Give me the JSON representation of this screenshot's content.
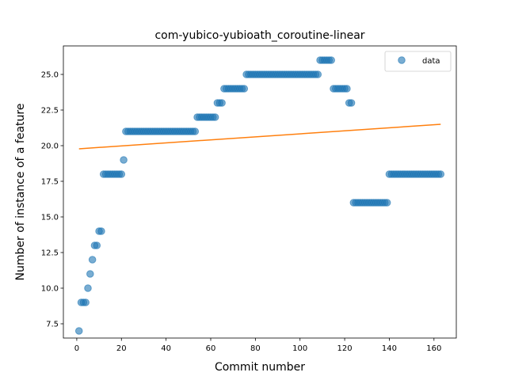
{
  "chart_data": {
    "type": "scatter",
    "title": "com-yubico-yubioath_coroutine-linear",
    "xlabel": "Commit number",
    "ylabel": "Number of instance of a feature",
    "xlim": [
      -6,
      170
    ],
    "ylim": [
      6.5,
      27.0
    ],
    "xticks": [
      0,
      20,
      40,
      60,
      80,
      100,
      120,
      140,
      160
    ],
    "yticks": [
      7.5,
      10.0,
      12.5,
      15.0,
      17.5,
      20.0,
      22.5,
      25.0
    ],
    "xtick_labels": [
      "0",
      "20",
      "40",
      "60",
      "80",
      "100",
      "120",
      "140",
      "160"
    ],
    "ytick_labels": [
      "7.5",
      "10.0",
      "12.5",
      "15.0",
      "17.5",
      "20.0",
      "22.5",
      "25.0"
    ],
    "grid": false,
    "legend": {
      "position": "top-right",
      "entries": [
        "data"
      ]
    },
    "series": [
      {
        "name": "data",
        "kind": "scatter",
        "color": "#1f77b4",
        "x": [
          1,
          2,
          3,
          4,
          5,
          6,
          7,
          8,
          9,
          10,
          11,
          12,
          13,
          14,
          15,
          16,
          17,
          18,
          19,
          20,
          21,
          22,
          23,
          24,
          25,
          26,
          27,
          28,
          29,
          30,
          31,
          32,
          33,
          34,
          35,
          36,
          37,
          38,
          39,
          40,
          41,
          42,
          43,
          44,
          45,
          46,
          47,
          48,
          49,
          50,
          51,
          52,
          53,
          54,
          55,
          56,
          57,
          58,
          59,
          60,
          61,
          62,
          63,
          64,
          65,
          66,
          67,
          68,
          69,
          70,
          71,
          72,
          73,
          74,
          75,
          76,
          77,
          78,
          79,
          80,
          81,
          82,
          83,
          84,
          85,
          86,
          87,
          88,
          89,
          90,
          91,
          92,
          93,
          94,
          95,
          96,
          97,
          98,
          99,
          100,
          101,
          102,
          103,
          104,
          105,
          106,
          107,
          108,
          109,
          110,
          111,
          112,
          113,
          114,
          115,
          116,
          117,
          118,
          119,
          120,
          121,
          122,
          123,
          124,
          125,
          126,
          127,
          128,
          129,
          130,
          131,
          132,
          133,
          134,
          135,
          136,
          137,
          138,
          139,
          140,
          141,
          142,
          143,
          144,
          145,
          146,
          147,
          148,
          149,
          150,
          151,
          152,
          153,
          154,
          155,
          156,
          157,
          158,
          159,
          160,
          161,
          162,
          163
        ],
        "y": [
          7,
          9,
          9,
          9,
          10,
          11,
          12,
          13,
          13,
          14,
          14,
          18,
          18,
          18,
          18,
          18,
          18,
          18,
          18,
          18,
          19,
          21,
          21,
          21,
          21,
          21,
          21,
          21,
          21,
          21,
          21,
          21,
          21,
          21,
          21,
          21,
          21,
          21,
          21,
          21,
          21,
          21,
          21,
          21,
          21,
          21,
          21,
          21,
          21,
          21,
          21,
          21,
          21,
          22,
          22,
          22,
          22,
          22,
          22,
          22,
          22,
          22,
          23,
          23,
          23,
          24,
          24,
          24,
          24,
          24,
          24,
          24,
          24,
          24,
          24,
          25,
          25,
          25,
          25,
          25,
          25,
          25,
          25,
          25,
          25,
          25,
          25,
          25,
          25,
          25,
          25,
          25,
          25,
          25,
          25,
          25,
          25,
          25,
          25,
          25,
          25,
          25,
          25,
          25,
          25,
          25,
          25,
          25,
          26,
          26,
          26,
          26,
          26,
          26,
          24,
          24,
          24,
          24,
          24,
          24,
          24,
          23,
          23,
          16,
          16,
          16,
          16,
          16,
          16,
          16,
          16,
          16,
          16,
          16,
          16,
          16,
          16,
          16,
          16,
          18,
          18,
          18,
          18,
          18,
          18,
          18,
          18,
          18,
          18,
          18,
          18,
          18,
          18,
          18,
          18,
          18,
          18,
          18,
          18,
          18,
          18,
          18,
          18
        ]
      },
      {
        "name": "",
        "kind": "line",
        "color": "#ff7f0e",
        "x": [
          1,
          163
        ],
        "y": [
          19.78,
          21.5
        ]
      }
    ]
  }
}
